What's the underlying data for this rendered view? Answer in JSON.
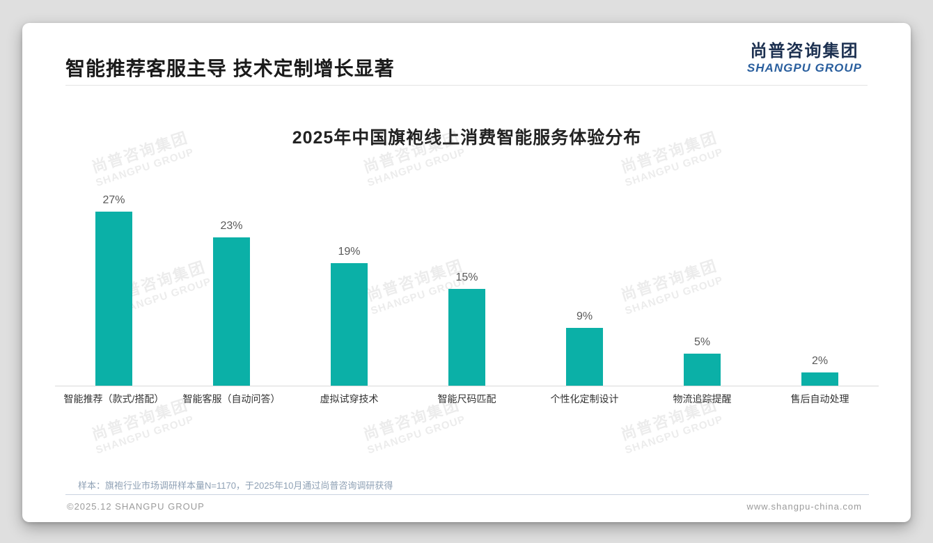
{
  "header": {
    "title": "智能推荐客服主导 技术定制增长显著",
    "logo": {
      "cn": "尚普咨询集团",
      "en": "SHANGPU GROUP"
    }
  },
  "chart_data": {
    "type": "bar",
    "title": "2025年中国旗袍线上消费智能服务体验分布",
    "categories": [
      "智能推荐（款式/搭配）",
      "智能客服（自动问答）",
      "虚拟试穿技术",
      "智能尺码匹配",
      "个性化定制设计",
      "物流追踪提醒",
      "售后自动处理"
    ],
    "values": [
      27,
      23,
      19,
      15,
      9,
      5,
      2
    ],
    "value_labels": [
      "27%",
      "23%",
      "19%",
      "15%",
      "9%",
      "5%",
      "2%"
    ],
    "unit": "%",
    "ylim": [
      0,
      30
    ],
    "grid": false,
    "legend": "none",
    "bar_color": "#0bb0a7",
    "axis_line_color": "#d9d9d9"
  },
  "watermark": {
    "cn": "尚普咨询集团",
    "en": "SHANGPU GROUP"
  },
  "footnote": "样本：旗袍行业市场调研样本量N=1170，于2025年10月通过尚普咨询调研获得",
  "footer": {
    "left": "©2025.12 SHANGPU GROUP",
    "right": "www.shangpu-china.com"
  }
}
